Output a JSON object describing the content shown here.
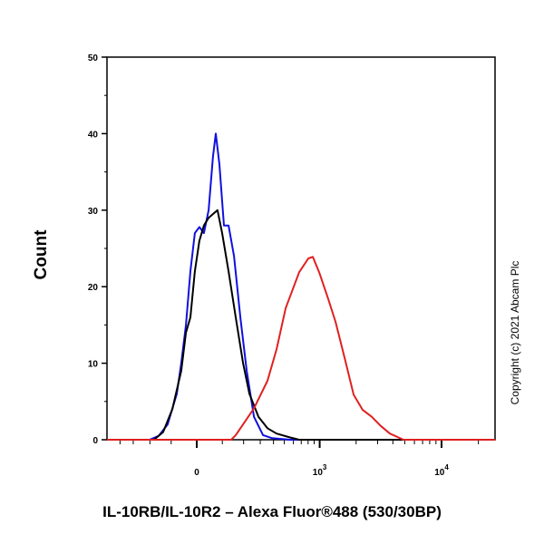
{
  "chart_data": {
    "type": "line",
    "title": "",
    "xlabel": "IL-10RB/IL-10R2 – Alexa Fluor®488 (530/30BP)",
    "ylabel": "Count",
    "x_scale": "biexponential",
    "xlim": [
      -520,
      27000
    ],
    "ylim": [
      0,
      50
    ],
    "yticks": [
      0,
      10,
      20,
      30,
      40,
      50
    ],
    "xticks": [
      {
        "value": 0,
        "label": "0",
        "exp": ""
      },
      {
        "value": 1000,
        "label": "10",
        "exp": "3"
      },
      {
        "value": 10000,
        "label": "10",
        "exp": "4"
      }
    ],
    "grid": false,
    "series": [
      {
        "color": "#1010e0",
        "points": [
          [
            -202,
            0
          ],
          [
            -156,
            0.5
          ],
          [
            -115,
            2
          ],
          [
            -77,
            6
          ],
          [
            -59,
            10
          ],
          [
            -41,
            15
          ],
          [
            -24,
            22
          ],
          [
            -7,
            27
          ],
          [
            10,
            27.8
          ],
          [
            27,
            27
          ],
          [
            45,
            30
          ],
          [
            62,
            37
          ],
          [
            73,
            40
          ],
          [
            88,
            36
          ],
          [
            107,
            28
          ],
          [
            127,
            28
          ],
          [
            152,
            24
          ],
          [
            183,
            16
          ],
          [
            217,
            9
          ],
          [
            259,
            3
          ],
          [
            319,
            0.6
          ],
          [
            389,
            0.2
          ],
          [
            562,
            0
          ]
        ]
      },
      {
        "color": "#000000",
        "points": [
          [
            -179,
            0
          ],
          [
            -135,
            1
          ],
          [
            -95,
            4
          ],
          [
            -59,
            9
          ],
          [
            -41,
            14
          ],
          [
            -24,
            16
          ],
          [
            -7,
            22
          ],
          [
            10,
            26
          ],
          [
            27,
            28
          ],
          [
            45,
            29
          ],
          [
            80,
            30
          ],
          [
            99,
            27
          ],
          [
            127,
            22
          ],
          [
            160,
            16
          ],
          [
            197,
            10
          ],
          [
            232,
            6
          ],
          [
            288,
            3
          ],
          [
            352,
            1.5
          ],
          [
            426,
            0.8
          ],
          [
            562,
            0.3
          ],
          [
            672,
            0
          ]
        ]
      },
      {
        "color": "#e02020",
        "points": [
          [
            139,
            0
          ],
          [
            160,
            0.6
          ],
          [
            259,
            4.1
          ],
          [
            352,
            7.7
          ],
          [
            426,
            11.8
          ],
          [
            514,
            17.2
          ],
          [
            672,
            21.9
          ],
          [
            804,
            23.7
          ],
          [
            876,
            23.9
          ],
          [
            990,
            21.9
          ],
          [
            1178,
            18.4
          ],
          [
            1354,
            15.4
          ],
          [
            1608,
            10.7
          ],
          [
            1908,
            5.9
          ],
          [
            2264,
            3.9
          ],
          [
            2686,
            3
          ],
          [
            3186,
            1.8
          ],
          [
            3780,
            0.8
          ],
          [
            4880,
            0
          ]
        ]
      }
    ]
  },
  "copyright": "Copyright (c) 2021 Abcam Plc"
}
